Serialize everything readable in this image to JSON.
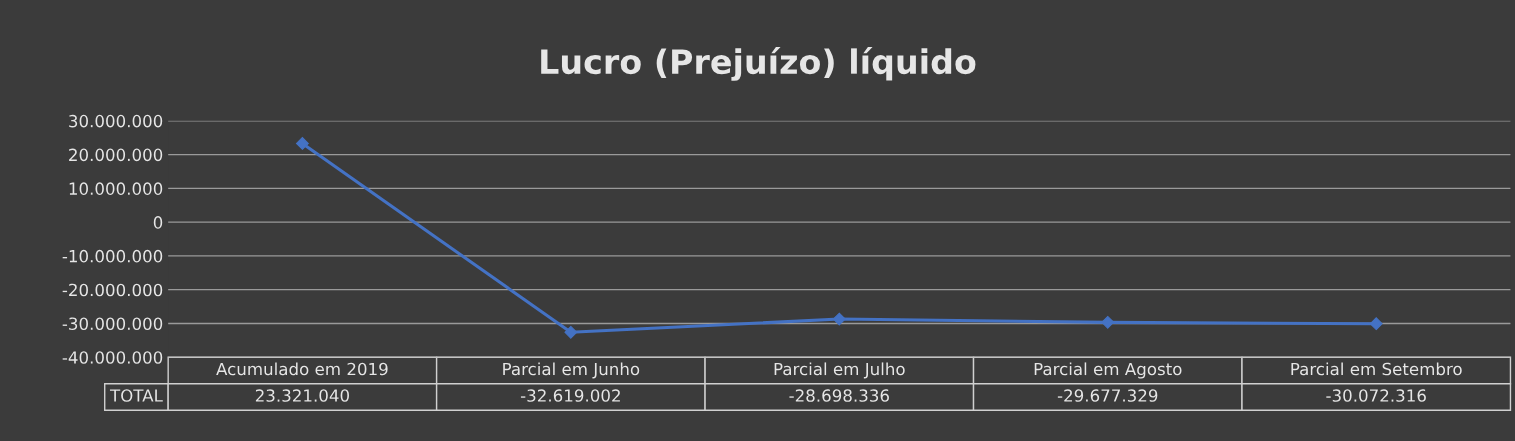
{
  "chart_data": {
    "type": "line",
    "title": "Lucro (Prejuízo) líquido",
    "categories": [
      "Acumulado em 2019",
      "Parcial em Junho",
      "Parcial em Julho",
      "Parcial em Agosto",
      "Parcial em Setembro"
    ],
    "series": [
      {
        "name": "TOTAL",
        "color": "#4472c4",
        "values": [
          23321040,
          -32619002,
          -28698336,
          -29677329,
          -30072316
        ],
        "value_labels": [
          "23.321.040",
          "-32.619.002",
          "-28.698.336",
          "-29.677.329",
          "-30.072.316"
        ]
      }
    ],
    "ylim": [
      -40000000,
      30000000
    ],
    "yticks": [
      {
        "value": -40000000,
        "label": "-40.000.000"
      },
      {
        "value": -30000000,
        "label": "-30.000.000"
      },
      {
        "value": -20000000,
        "label": "-20.000.000"
      },
      {
        "value": -10000000,
        "label": "-10.000.000"
      },
      0,
      {
        "value": 10000000,
        "label": "10.000.000"
      },
      {
        "value": 20000000,
        "label": "20.000.000"
      },
      {
        "value": 30000000,
        "label": "30.000.000"
      }
    ],
    "grid": "y",
    "marker": "diamond",
    "line_style": "solid",
    "legend": false
  }
}
